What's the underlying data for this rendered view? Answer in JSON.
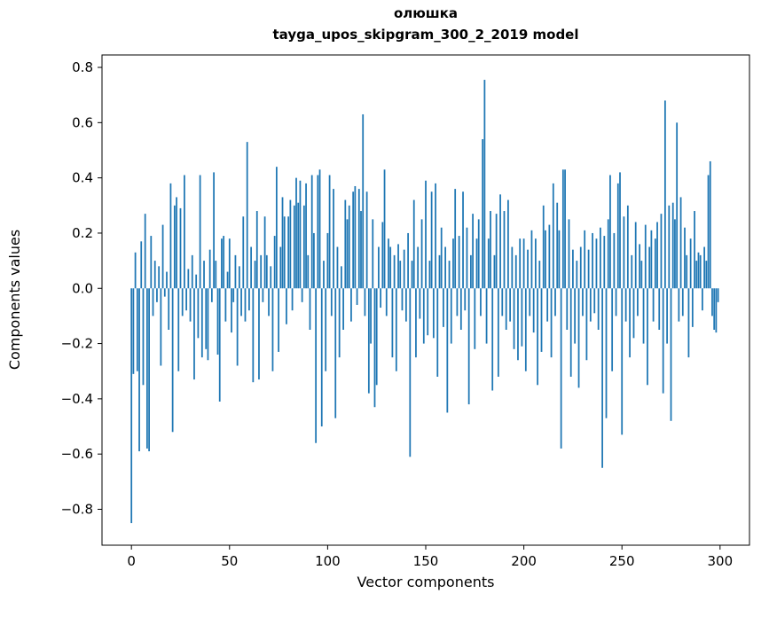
{
  "title": "олюшка",
  "subtitle": "tayga_upos_skipgram_300_2_2019 model",
  "chart_data": {
    "type": "bar",
    "title": "олюшка",
    "subtitle": "tayga_upos_skipgram_300_2_2019 model",
    "xlabel": "Vector components",
    "ylabel": "Components values",
    "bar_color": "#1f77b4",
    "grid": false,
    "legend": "none",
    "xlim": [
      -15,
      315
    ],
    "ylim": [
      -0.93,
      0.845
    ],
    "x_ticks": [
      0,
      50,
      100,
      150,
      200,
      250,
      300
    ],
    "x_tick_labels": [
      "0",
      "50",
      "100",
      "150",
      "200",
      "250",
      "300"
    ],
    "y_ticks": [
      -0.8,
      -0.6,
      -0.4,
      -0.2,
      0.0,
      0.2,
      0.4,
      0.6,
      0.8
    ],
    "y_tick_labels": [
      "−0.8",
      "−0.6",
      "−0.4",
      "−0.2",
      "0.0",
      "0.2",
      "0.4",
      "0.6",
      "0.8"
    ],
    "x": "indices 0..299",
    "values": [
      -0.85,
      -0.31,
      0.13,
      -0.3,
      -0.59,
      0.17,
      -0.35,
      0.27,
      -0.58,
      -0.59,
      0.19,
      -0.1,
      0.1,
      -0.05,
      0.08,
      -0.28,
      0.23,
      -0.03,
      0.06,
      -0.15,
      0.38,
      -0.52,
      0.3,
      0.33,
      -0.3,
      0.29,
      -0.1,
      0.41,
      -0.08,
      0.07,
      -0.12,
      0.12,
      -0.33,
      0.05,
      -0.18,
      0.41,
      -0.25,
      0.1,
      -0.22,
      -0.26,
      0.14,
      -0.05,
      0.42,
      0.1,
      -0.24,
      -0.41,
      0.18,
      0.19,
      -0.12,
      0.06,
      0.18,
      -0.16,
      -0.05,
      0.12,
      -0.28,
      0.08,
      -0.1,
      0.26,
      -0.12,
      0.53,
      -0.08,
      0.15,
      -0.34,
      0.1,
      0.28,
      -0.33,
      0.12,
      -0.05,
      0.26,
      0.12,
      -0.1,
      0.08,
      -0.3,
      0.19,
      0.44,
      -0.23,
      0.15,
      0.33,
      0.26,
      -0.13,
      0.26,
      0.32,
      -0.08,
      0.3,
      0.4,
      0.31,
      0.39,
      -0.05,
      0.3,
      0.38,
      0.12,
      -0.15,
      0.41,
      0.2,
      -0.56,
      0.41,
      0.43,
      -0.5,
      0.1,
      -0.3,
      0.2,
      0.41,
      -0.1,
      0.36,
      -0.47,
      0.15,
      -0.25,
      0.08,
      -0.15,
      0.32,
      0.25,
      0.3,
      -0.12,
      0.35,
      0.37,
      -0.06,
      0.36,
      0.28,
      0.63,
      -0.1,
      0.35,
      -0.38,
      -0.2,
      0.25,
      -0.43,
      -0.35,
      0.15,
      -0.07,
      0.24,
      0.43,
      -0.1,
      0.18,
      0.15,
      -0.25,
      0.12,
      -0.3,
      0.16,
      0.1,
      -0.08,
      0.14,
      -0.12,
      0.2,
      -0.61,
      0.1,
      0.32,
      -0.25,
      0.15,
      -0.11,
      0.25,
      -0.2,
      0.39,
      -0.17,
      0.1,
      0.35,
      -0.18,
      0.38,
      -0.32,
      0.12,
      0.22,
      -0.14,
      0.15,
      -0.45,
      0.1,
      -0.2,
      0.18,
      0.36,
      -0.1,
      0.19,
      -0.15,
      0.35,
      -0.08,
      0.22,
      -0.42,
      0.12,
      0.27,
      -0.22,
      0.18,
      0.25,
      -0.1,
      0.54,
      0.755,
      -0.2,
      0.18,
      0.28,
      -0.37,
      0.12,
      0.27,
      -0.32,
      0.34,
      -0.1,
      0.28,
      -0.15,
      0.32,
      -0.12,
      0.15,
      -0.22,
      0.12,
      -0.26,
      0.18,
      -0.21,
      0.18,
      -0.3,
      0.14,
      -0.1,
      0.21,
      -0.16,
      0.18,
      -0.35,
      0.1,
      -0.23,
      0.3,
      0.21,
      -0.12,
      0.23,
      -0.25,
      0.38,
      -0.1,
      0.31,
      0.21,
      -0.58,
      0.43,
      0.43,
      -0.15,
      0.25,
      -0.32,
      0.14,
      -0.2,
      0.1,
      -0.36,
      0.15,
      -0.1,
      0.21,
      -0.26,
      0.14,
      -0.12,
      0.2,
      -0.09,
      0.18,
      -0.15,
      0.22,
      -0.65,
      0.19,
      -0.47,
      0.25,
      0.41,
      -0.3,
      0.2,
      -0.1,
      0.38,
      0.42,
      -0.53,
      0.26,
      -0.12,
      0.3,
      -0.25,
      0.12,
      -0.18,
      0.24,
      -0.1,
      0.16,
      0.1,
      -0.2,
      0.23,
      -0.35,
      0.15,
      0.21,
      -0.12,
      0.18,
      0.24,
      -0.15,
      0.27,
      -0.38,
      0.68,
      -0.2,
      0.3,
      -0.48,
      0.31,
      0.25,
      0.6,
      -0.12,
      0.33,
      -0.1,
      0.22,
      0.12,
      -0.25,
      0.18,
      -0.14,
      0.28,
      0.1,
      0.13,
      0.12,
      -0.08,
      0.15,
      0.1,
      0.41,
      0.46,
      -0.1,
      -0.15,
      -0.16,
      -0.05
    ]
  }
}
